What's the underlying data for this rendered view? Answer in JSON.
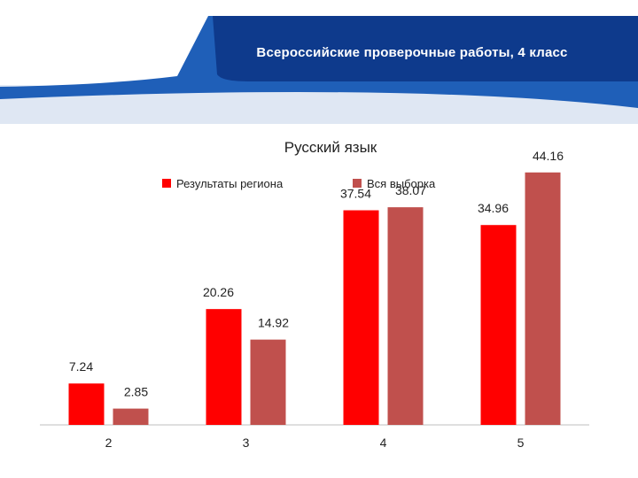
{
  "header": {
    "title": "Всероссийские проверочные работы, 4 класс",
    "colors": {
      "dark": "#0e3a8c",
      "mid": "#1f5fb8",
      "light": "#dfe7f3"
    }
  },
  "chart_data": {
    "type": "bar",
    "title": "Русский язык",
    "categories": [
      "2",
      "3",
      "4",
      "5"
    ],
    "series": [
      {
        "name": "Результаты региона",
        "color": "#ff0000",
        "values": [
          7.24,
          20.26,
          37.54,
          34.96
        ]
      },
      {
        "name": "Вся выборка",
        "color": "#c0504d",
        "values": [
          2.85,
          14.92,
          38.07,
          44.16
        ]
      }
    ],
    "data_labels": [
      [
        "7.24",
        "20.26",
        "37.54",
        "34.96"
      ],
      [
        "2.85",
        "14.92",
        "38.07",
        "44.16"
      ]
    ],
    "ylim": [
      0,
      48
    ],
    "legend": "top",
    "grid": false
  }
}
